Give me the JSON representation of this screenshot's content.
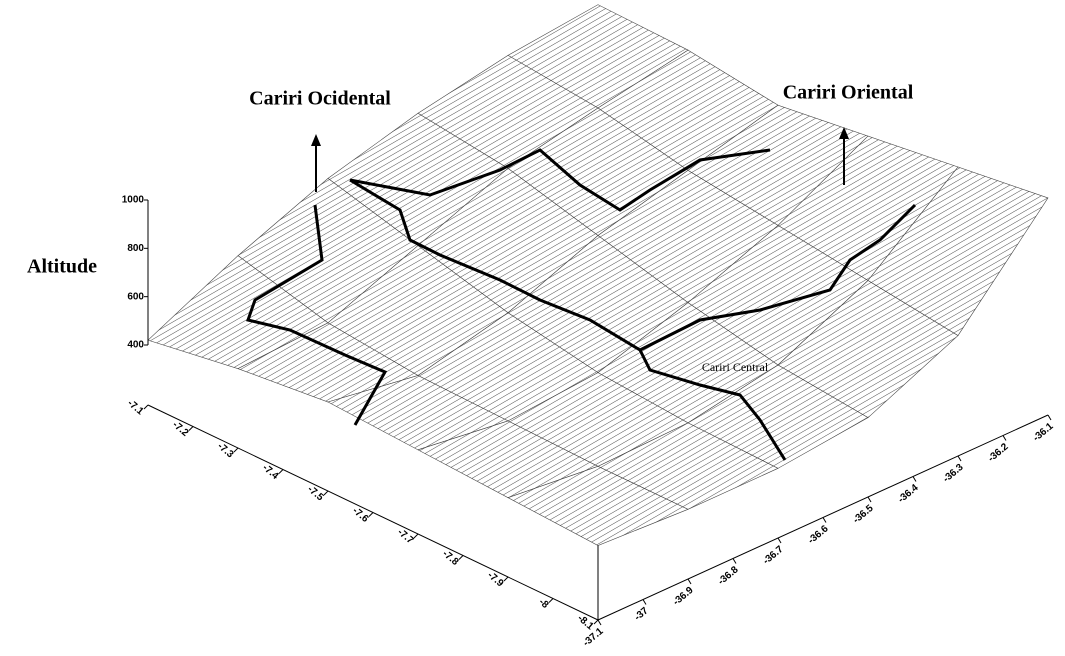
{
  "chart_data": {
    "type": "surface",
    "annotations": {
      "west": "Cariri Ocidental",
      "east": "Cariri Oriental",
      "center": "Cariri Central"
    },
    "zlabel": "Altitude",
    "x": [
      -37.1,
      -36.9,
      -36.7,
      -36.5,
      -36.3,
      -36.1
    ],
    "y": [
      -7.1,
      -7.3,
      -7.5,
      -7.7,
      -7.9,
      -8.1
    ],
    "z": [
      [
        420,
        600,
        750,
        850,
        920,
        960
      ],
      [
        480,
        500,
        650,
        800,
        880,
        950
      ],
      [
        520,
        460,
        550,
        700,
        800,
        900
      ],
      [
        500,
        450,
        480,
        600,
        750,
        950
      ],
      [
        480,
        440,
        450,
        520,
        700,
        1000
      ],
      [
        460,
        440,
        440,
        480,
        650,
        1050
      ]
    ],
    "xlim": [
      -37.1,
      -36.1
    ],
    "ylim": [
      -7.1,
      -8.1
    ],
    "zlim": [
      400,
      1000
    ],
    "xticks": [
      -37.1,
      -37,
      -36.9,
      -36.8,
      -36.7,
      -36.6,
      -36.5,
      -36.4,
      -36.3,
      -36.2,
      -36.1
    ],
    "yticks": [
      -7.1,
      -7.2,
      -7.3,
      -7.4,
      -7.5,
      -7.6,
      -7.7,
      -7.8,
      -7.9,
      -8,
      -8.1
    ],
    "zticks": [
      400,
      600,
      800,
      1000
    ]
  }
}
